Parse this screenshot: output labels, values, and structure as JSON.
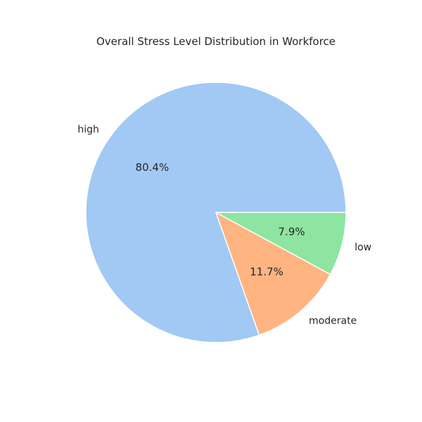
{
  "chart_data": {
    "type": "pie",
    "title": "Overall Stress Level Distribution in Workforce",
    "start_angle": 0,
    "direction": "counterclockwise",
    "slices": [
      {
        "label": "high",
        "value": 80.4,
        "pct_label": "80.4%",
        "color": "#a1c9f4"
      },
      {
        "label": "moderate",
        "value": 11.7,
        "pct_label": "11.7%",
        "color": "#ffb482"
      },
      {
        "label": "low",
        "value": 7.9,
        "pct_label": "7.9%",
        "color": "#8de5a1"
      }
    ]
  }
}
